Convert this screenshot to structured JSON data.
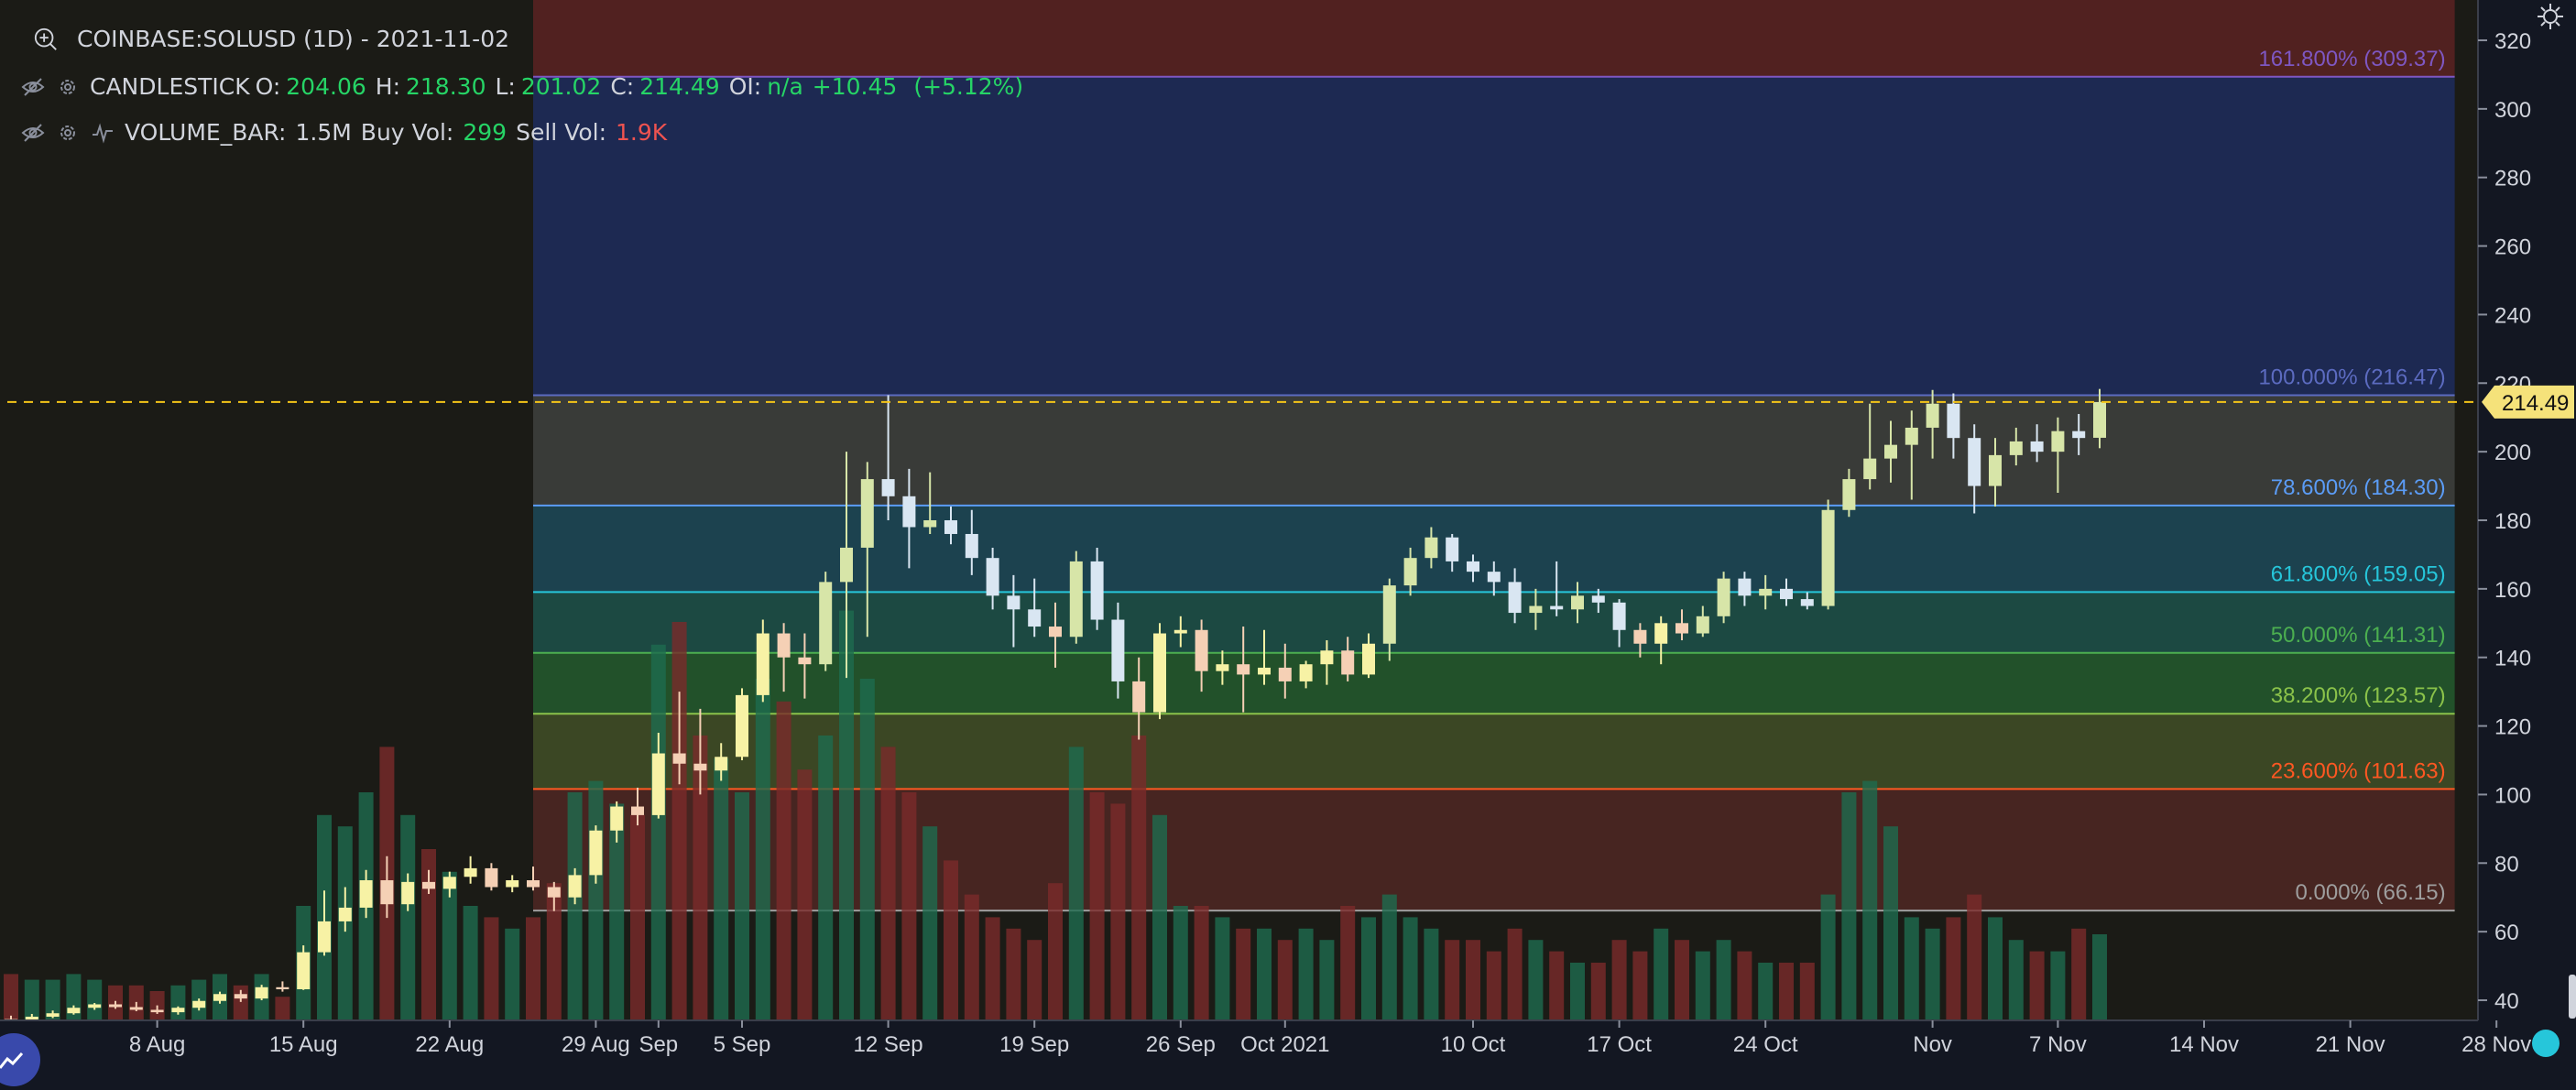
{
  "header": {
    "symbol_title": "COINBASE:SOLUSD (1D) - 2021-11-02"
  },
  "legend": {
    "candles": {
      "name": "CANDLESTICK",
      "o_label": "O:",
      "o": "204.06",
      "h_label": "H:",
      "h": "218.30",
      "l_label": "L:",
      "l": "201.02",
      "c_label": "C:",
      "c": "214.49",
      "oi_label": "OI:",
      "oi": "n/a",
      "change": "+10.45",
      "change_pct": "(+5.12%)"
    },
    "volume": {
      "name": "VOLUME_BAR:",
      "value": "1.5M",
      "buy_label": "Buy Vol:",
      "buy": "299",
      "sell_label": "Sell Vol:",
      "sell": "1.9K"
    }
  },
  "price_tag": "214.49",
  "colors": {
    "background": "#131722",
    "bull": "#26a69a",
    "bear": "#ef5350",
    "crosshair": "#f5c518"
  },
  "chart_data": {
    "type": "candlestick",
    "y_axis": {
      "min": 30,
      "max": 330,
      "ticks": [
        40,
        60,
        80,
        100,
        120,
        140,
        160,
        180,
        200,
        220,
        240,
        260,
        280,
        300,
        320
      ],
      "position": "right"
    },
    "x_ticks": [
      {
        "label": "8 Aug",
        "date": "2021-08-08"
      },
      {
        "label": "15 Aug",
        "date": "2021-08-15"
      },
      {
        "label": "22 Aug",
        "date": "2021-08-22"
      },
      {
        "label": "29 Aug",
        "date": "2021-08-29"
      },
      {
        "label": "Sep",
        "date": "2021-09-01"
      },
      {
        "label": "5 Sep",
        "date": "2021-09-05"
      },
      {
        "label": "12 Sep",
        "date": "2021-09-12"
      },
      {
        "label": "19 Sep",
        "date": "2021-09-19"
      },
      {
        "label": "26 Sep",
        "date": "2021-09-26"
      },
      {
        "label": "Oct 2021",
        "date": "2021-10-01"
      },
      {
        "label": "10 Oct",
        "date": "2021-10-10"
      },
      {
        "label": "17 Oct",
        "date": "2021-10-17"
      },
      {
        "label": "24 Oct",
        "date": "2021-10-24"
      },
      {
        "label": "Nov",
        "date": "2021-11-01"
      },
      {
        "label": "7 Nov",
        "date": "2021-11-07"
      },
      {
        "label": "14 Nov",
        "date": "2021-11-14"
      },
      {
        "label": "21 Nov",
        "date": "2021-11-21"
      },
      {
        "label": "28 Nov",
        "date": "2021-11-28"
      }
    ],
    "x_range": [
      "2021-08-01",
      "2021-11-30"
    ],
    "last_price": 214.49,
    "fibonacci": {
      "start_date": "2021-08-26",
      "end_date": "2021-11-26",
      "levels": [
        {
          "label": "161.800% (309.37)",
          "value": 309.37,
          "color": "#7e57c2"
        },
        {
          "label": "100.000% (216.47)",
          "value": 216.47,
          "color": "#5c6bc0"
        },
        {
          "label": "78.600% (184.30)",
          "value": 184.3,
          "color": "#5b9cf6"
        },
        {
          "label": "61.800% (159.05)",
          "value": 159.05,
          "color": "#26c6da"
        },
        {
          "label": "50.000% (141.31)",
          "value": 141.31,
          "color": "#4caf50"
        },
        {
          "label": "38.200% (123.57)",
          "value": 123.57,
          "color": "#8bc34a"
        },
        {
          "label": "23.600% (101.63)",
          "value": 101.63,
          "color": "#ff5722"
        },
        {
          "label": "0.000% (66.15)",
          "value": 66.15,
          "color": "#9e9e9e"
        }
      ]
    },
    "candles": [
      {
        "date": "2021-08-01",
        "o": 34.5,
        "h": 35.5,
        "l": 33.2,
        "c": 34.0,
        "v": 8
      },
      {
        "date": "2021-08-02",
        "o": 34.0,
        "h": 36.0,
        "l": 33.5,
        "c": 35.2,
        "v": 7
      },
      {
        "date": "2021-08-03",
        "o": 35.2,
        "h": 37.0,
        "l": 34.8,
        "c": 36.2,
        "v": 7
      },
      {
        "date": "2021-08-04",
        "o": 36.2,
        "h": 38.5,
        "l": 35.8,
        "c": 37.8,
        "v": 8
      },
      {
        "date": "2021-08-05",
        "o": 37.8,
        "h": 39.2,
        "l": 37.2,
        "c": 38.8,
        "v": 7
      },
      {
        "date": "2021-08-06",
        "o": 38.8,
        "h": 39.8,
        "l": 37.5,
        "c": 38.0,
        "v": 6
      },
      {
        "date": "2021-08-07",
        "o": 38.0,
        "h": 39.5,
        "l": 36.8,
        "c": 37.2,
        "v": 6
      },
      {
        "date": "2021-08-08",
        "o": 37.2,
        "h": 38.5,
        "l": 36.0,
        "c": 36.5,
        "v": 5
      },
      {
        "date": "2021-08-09",
        "o": 36.5,
        "h": 38.2,
        "l": 35.8,
        "c": 37.8,
        "v": 6
      },
      {
        "date": "2021-08-10",
        "o": 37.8,
        "h": 40.5,
        "l": 37.0,
        "c": 39.8,
        "v": 7
      },
      {
        "date": "2021-08-11",
        "o": 39.8,
        "h": 42.5,
        "l": 39.0,
        "c": 41.8,
        "v": 8
      },
      {
        "date": "2021-08-12",
        "o": 41.8,
        "h": 43.0,
        "l": 39.5,
        "c": 40.5,
        "v": 6
      },
      {
        "date": "2021-08-13",
        "o": 40.5,
        "h": 44.5,
        "l": 40.0,
        "c": 43.8,
        "v": 8
      },
      {
        "date": "2021-08-14",
        "o": 43.8,
        "h": 45.5,
        "l": 42.5,
        "c": 43.2,
        "v": 4
      },
      {
        "date": "2021-08-15",
        "o": 43.2,
        "h": 56.0,
        "l": 43.0,
        "c": 54.0,
        "v": 20
      },
      {
        "date": "2021-08-16",
        "o": 54.0,
        "h": 72.0,
        "l": 53.0,
        "c": 63.0,
        "v": 36
      },
      {
        "date": "2021-08-17",
        "o": 63.0,
        "h": 73.0,
        "l": 60.0,
        "c": 67.0,
        "v": 34
      },
      {
        "date": "2021-08-18",
        "o": 67.0,
        "h": 78.0,
        "l": 64.0,
        "c": 75.0,
        "v": 40
      },
      {
        "date": "2021-08-19",
        "o": 75.0,
        "h": 82.0,
        "l": 64.0,
        "c": 68.0,
        "v": 48
      },
      {
        "date": "2021-08-20",
        "o": 68.0,
        "h": 77.0,
        "l": 66.0,
        "c": 74.5,
        "v": 36
      },
      {
        "date": "2021-08-21",
        "o": 74.5,
        "h": 78.0,
        "l": 71.0,
        "c": 72.5,
        "v": 30
      },
      {
        "date": "2021-08-22",
        "o": 72.5,
        "h": 77.5,
        "l": 70.0,
        "c": 76.0,
        "v": 26
      },
      {
        "date": "2021-08-23",
        "o": 76.0,
        "h": 82.0,
        "l": 74.0,
        "c": 78.5,
        "v": 20
      },
      {
        "date": "2021-08-24",
        "o": 78.5,
        "h": 80.0,
        "l": 72.0,
        "c": 73.0,
        "v": 18
      },
      {
        "date": "2021-08-25",
        "o": 73.0,
        "h": 76.5,
        "l": 71.5,
        "c": 75.0,
        "v": 16
      },
      {
        "date": "2021-08-26",
        "o": 75.0,
        "h": 79.0,
        "l": 72.0,
        "c": 73.0,
        "v": 18
      },
      {
        "date": "2021-08-27",
        "o": 73.0,
        "h": 74.5,
        "l": 66.0,
        "c": 70.0,
        "v": 24
      },
      {
        "date": "2021-08-28",
        "o": 70.0,
        "h": 78.5,
        "l": 68.0,
        "c": 76.5,
        "v": 40
      },
      {
        "date": "2021-08-29",
        "o": 76.5,
        "h": 91.0,
        "l": 74.0,
        "c": 89.5,
        "v": 42
      },
      {
        "date": "2021-08-30",
        "o": 89.5,
        "h": 98.0,
        "l": 86.0,
        "c": 96.5,
        "v": 38
      },
      {
        "date": "2021-08-31",
        "o": 96.5,
        "h": 102.0,
        "l": 91.0,
        "c": 94.0,
        "v": 36
      },
      {
        "date": "2021-09-01",
        "o": 94.0,
        "h": 118.0,
        "l": 93.0,
        "c": 112.0,
        "v": 66
      },
      {
        "date": "2021-09-02",
        "o": 112.0,
        "h": 130.0,
        "l": 103.0,
        "c": 109.0,
        "v": 70
      },
      {
        "date": "2021-09-03",
        "o": 109.0,
        "h": 125.0,
        "l": 100.0,
        "c": 107.0,
        "v": 50
      },
      {
        "date": "2021-09-04",
        "o": 107.0,
        "h": 115.0,
        "l": 104.0,
        "c": 111.0,
        "v": 46
      },
      {
        "date": "2021-09-05",
        "o": 111.0,
        "h": 131.0,
        "l": 110.0,
        "c": 129.0,
        "v": 40
      },
      {
        "date": "2021-09-06",
        "o": 129.0,
        "h": 151.0,
        "l": 127.0,
        "c": 147.0,
        "v": 60
      },
      {
        "date": "2021-09-07",
        "o": 147.0,
        "h": 150.0,
        "l": 130.0,
        "c": 140.0,
        "v": 56
      },
      {
        "date": "2021-09-08",
        "o": 140.0,
        "h": 147.0,
        "l": 128.0,
        "c": 138.0,
        "v": 44
      },
      {
        "date": "2021-09-09",
        "o": 138.0,
        "h": 165.0,
        "l": 136.0,
        "c": 162.0,
        "v": 50
      },
      {
        "date": "2021-09-10",
        "o": 162.0,
        "h": 200.0,
        "l": 134.0,
        "c": 172.0,
        "v": 72
      },
      {
        "date": "2021-09-11",
        "o": 172.0,
        "h": 197.0,
        "l": 146.0,
        "c": 192.0,
        "v": 60
      },
      {
        "date": "2021-09-12",
        "o": 192.0,
        "h": 216.5,
        "l": 180.0,
        "c": 187.0,
        "v": 48
      },
      {
        "date": "2021-09-13",
        "o": 187.0,
        "h": 195.0,
        "l": 166.0,
        "c": 178.0,
        "v": 40
      },
      {
        "date": "2021-09-14",
        "o": 178.0,
        "h": 194.0,
        "l": 176.0,
        "c": 180.0,
        "v": 34
      },
      {
        "date": "2021-09-15",
        "o": 180.0,
        "h": 184.0,
        "l": 173.0,
        "c": 176.0,
        "v": 28
      },
      {
        "date": "2021-09-16",
        "o": 176.0,
        "h": 183.0,
        "l": 164.0,
        "c": 169.0,
        "v": 22
      },
      {
        "date": "2021-09-17",
        "o": 169.0,
        "h": 172.0,
        "l": 154.0,
        "c": 158.0,
        "v": 18
      },
      {
        "date": "2021-09-18",
        "o": 158.0,
        "h": 164.0,
        "l": 143.0,
        "c": 154.0,
        "v": 16
      },
      {
        "date": "2021-09-19",
        "o": 154.0,
        "h": 163.0,
        "l": 146.0,
        "c": 149.0,
        "v": 14
      },
      {
        "date": "2021-09-20",
        "o": 149.0,
        "h": 156.0,
        "l": 137.0,
        "c": 146.0,
        "v": 24
      },
      {
        "date": "2021-09-21",
        "o": 146.0,
        "h": 171.0,
        "l": 144.0,
        "c": 168.0,
        "v": 48
      },
      {
        "date": "2021-09-22",
        "o": 168.0,
        "h": 172.0,
        "l": 148.0,
        "c": 151.0,
        "v": 40
      },
      {
        "date": "2021-09-23",
        "o": 151.0,
        "h": 156.0,
        "l": 128.0,
        "c": 133.0,
        "v": 38
      },
      {
        "date": "2021-09-24",
        "o": 133.0,
        "h": 140.0,
        "l": 116.0,
        "c": 124.0,
        "v": 50
      },
      {
        "date": "2021-09-25",
        "o": 124.0,
        "h": 150.0,
        "l": 122.0,
        "c": 147.0,
        "v": 36
      },
      {
        "date": "2021-09-26",
        "o": 147.0,
        "h": 152.0,
        "l": 143.0,
        "c": 148.0,
        "v": 20
      },
      {
        "date": "2021-09-27",
        "o": 148.0,
        "h": 151.0,
        "l": 130.0,
        "c": 136.0,
        "v": 20
      },
      {
        "date": "2021-09-28",
        "o": 136.0,
        "h": 142.0,
        "l": 132.0,
        "c": 138.0,
        "v": 18
      },
      {
        "date": "2021-09-29",
        "o": 138.0,
        "h": 149.0,
        "l": 124.0,
        "c": 135.0,
        "v": 16
      },
      {
        "date": "2021-09-30",
        "o": 135.0,
        "h": 148.0,
        "l": 132.0,
        "c": 137.0,
        "v": 16
      },
      {
        "date": "2021-10-01",
        "o": 137.0,
        "h": 144.0,
        "l": 128.0,
        "c": 133.0,
        "v": 14
      },
      {
        "date": "2021-10-02",
        "o": 133.0,
        "h": 139.0,
        "l": 131.0,
        "c": 138.0,
        "v": 16
      },
      {
        "date": "2021-10-03",
        "o": 138.0,
        "h": 145.0,
        "l": 132.0,
        "c": 142.0,
        "v": 14
      },
      {
        "date": "2021-10-04",
        "o": 142.0,
        "h": 146.0,
        "l": 133.0,
        "c": 135.0,
        "v": 20
      },
      {
        "date": "2021-10-05",
        "o": 135.0,
        "h": 147.0,
        "l": 134.0,
        "c": 144.0,
        "v": 18
      },
      {
        "date": "2021-10-06",
        "o": 144.0,
        "h": 163.0,
        "l": 139.0,
        "c": 161.0,
        "v": 22
      },
      {
        "date": "2021-10-07",
        "o": 161.0,
        "h": 172.0,
        "l": 158.0,
        "c": 169.0,
        "v": 18
      },
      {
        "date": "2021-10-08",
        "o": 169.0,
        "h": 178.0,
        "l": 166.0,
        "c": 175.0,
        "v": 16
      },
      {
        "date": "2021-10-09",
        "o": 175.0,
        "h": 176.0,
        "l": 165.0,
        "c": 168.0,
        "v": 14
      },
      {
        "date": "2021-10-10",
        "o": 168.0,
        "h": 170.0,
        "l": 162.0,
        "c": 165.0,
        "v": 14
      },
      {
        "date": "2021-10-11",
        "o": 165.0,
        "h": 168.0,
        "l": 158.0,
        "c": 162.0,
        "v": 12
      },
      {
        "date": "2021-10-12",
        "o": 162.0,
        "h": 166.0,
        "l": 150.0,
        "c": 153.0,
        "v": 16
      },
      {
        "date": "2021-10-13",
        "o": 153.0,
        "h": 160.0,
        "l": 148.0,
        "c": 155.0,
        "v": 14
      },
      {
        "date": "2021-10-14",
        "o": 155.0,
        "h": 168.0,
        "l": 152.0,
        "c": 154.0,
        "v": 12
      },
      {
        "date": "2021-10-15",
        "o": 154.0,
        "h": 162.0,
        "l": 150.0,
        "c": 158.0,
        "v": 10
      },
      {
        "date": "2021-10-16",
        "o": 158.0,
        "h": 160.0,
        "l": 153.0,
        "c": 156.0,
        "v": 10
      },
      {
        "date": "2021-10-17",
        "o": 156.0,
        "h": 157.0,
        "l": 143.0,
        "c": 148.0,
        "v": 14
      },
      {
        "date": "2021-10-18",
        "o": 148.0,
        "h": 150.0,
        "l": 140.0,
        "c": 144.0,
        "v": 12
      },
      {
        "date": "2021-10-19",
        "o": 144.0,
        "h": 152.0,
        "l": 138.0,
        "c": 150.0,
        "v": 16
      },
      {
        "date": "2021-10-20",
        "o": 150.0,
        "h": 154.0,
        "l": 145.0,
        "c": 147.0,
        "v": 14
      },
      {
        "date": "2021-10-21",
        "o": 147.0,
        "h": 155.0,
        "l": 146.0,
        "c": 152.0,
        "v": 12
      },
      {
        "date": "2021-10-22",
        "o": 152.0,
        "h": 165.0,
        "l": 150.0,
        "c": 163.0,
        "v": 14
      },
      {
        "date": "2021-10-23",
        "o": 163.0,
        "h": 165.0,
        "l": 155.0,
        "c": 158.0,
        "v": 12
      },
      {
        "date": "2021-10-24",
        "o": 158.0,
        "h": 164.0,
        "l": 154.0,
        "c": 160.0,
        "v": 10
      },
      {
        "date": "2021-10-25",
        "o": 160.0,
        "h": 163.0,
        "l": 155.0,
        "c": 157.0,
        "v": 10
      },
      {
        "date": "2021-10-26",
        "o": 157.0,
        "h": 159.0,
        "l": 154.0,
        "c": 155.0,
        "v": 10
      },
      {
        "date": "2021-10-27",
        "o": 155.0,
        "h": 186.0,
        "l": 154.0,
        "c": 183.0,
        "v": 22
      },
      {
        "date": "2021-10-28",
        "o": 183.0,
        "h": 195.0,
        "l": 181.0,
        "c": 192.0,
        "v": 40
      },
      {
        "date": "2021-10-29",
        "o": 192.0,
        "h": 214.0,
        "l": 189.0,
        "c": 198.0,
        "v": 42
      },
      {
        "date": "2021-10-30",
        "o": 198.0,
        "h": 209.0,
        "l": 191.0,
        "c": 202.0,
        "v": 34
      },
      {
        "date": "2021-10-31",
        "o": 202.0,
        "h": 212.0,
        "l": 186.0,
        "c": 207.0,
        "v": 18
      },
      {
        "date": "2021-11-01",
        "o": 207.0,
        "h": 218.0,
        "l": 198.0,
        "c": 214.0,
        "v": 16
      },
      {
        "date": "2021-11-02",
        "o": 214.0,
        "h": 217.0,
        "l": 198.0,
        "c": 204.0,
        "v": 18
      },
      {
        "date": "2021-11-03",
        "o": 204.0,
        "h": 208.0,
        "l": 182.0,
        "c": 190.0,
        "v": 22
      },
      {
        "date": "2021-11-04",
        "o": 190.0,
        "h": 204.0,
        "l": 184.0,
        "c": 199.0,
        "v": 18
      },
      {
        "date": "2021-11-05",
        "o": 199.0,
        "h": 207.0,
        "l": 196.0,
        "c": 203.0,
        "v": 14
      },
      {
        "date": "2021-11-06",
        "o": 203.0,
        "h": 208.0,
        "l": 197.0,
        "c": 200.0,
        "v": 12
      },
      {
        "date": "2021-11-07",
        "o": 200.0,
        "h": 210.0,
        "l": 188.0,
        "c": 206.0,
        "v": 12
      },
      {
        "date": "2021-11-08",
        "o": 206.0,
        "h": 211.0,
        "l": 199.0,
        "c": 204.0,
        "v": 16
      },
      {
        "date": "2021-11-09",
        "o": 204.06,
        "h": 218.3,
        "l": 201.02,
        "c": 214.49,
        "v": 15
      }
    ]
  }
}
